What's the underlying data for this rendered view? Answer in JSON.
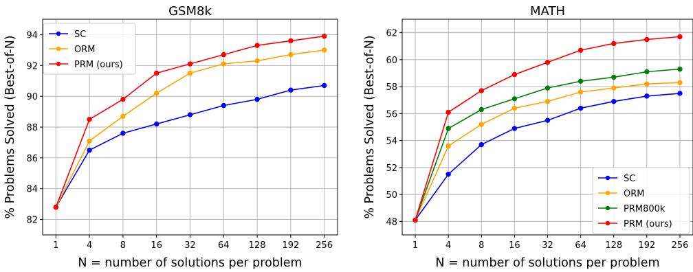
{
  "chart_data": [
    {
      "type": "line",
      "title": "GSM8k",
      "xlabel": "N = number of solutions per problem",
      "ylabel": "% Problems Solved (Best-of-N)",
      "categories": [
        "1",
        "4",
        "8",
        "16",
        "32",
        "64",
        "128",
        "192",
        "256"
      ],
      "ylim": [
        81,
        95
      ],
      "yticks": [
        82,
        84,
        86,
        88,
        90,
        92,
        94
      ],
      "grid": true,
      "legend_position": "top-left",
      "series": [
        {
          "name": "SC",
          "color": "#0000ff",
          "values": [
            82.8,
            86.5,
            87.6,
            88.2,
            88.8,
            89.4,
            89.8,
            90.4,
            90.7
          ]
        },
        {
          "name": "ORM",
          "color": "#ffa500",
          "values": [
            82.8,
            87.1,
            88.7,
            90.2,
            91.5,
            92.1,
            92.3,
            92.7,
            93.0
          ]
        },
        {
          "name": "PRM (ours)",
          "color": "#ff0000",
          "values": [
            82.8,
            88.5,
            89.8,
            91.5,
            92.1,
            92.7,
            93.3,
            93.6,
            93.9
          ]
        }
      ]
    },
    {
      "type": "line",
      "title": "MATH",
      "xlabel": "N = number of solutions per problem",
      "ylabel": "% Problems Solved (Best-of-N)",
      "categories": [
        "1",
        "4",
        "8",
        "16",
        "32",
        "64",
        "128",
        "192",
        "256"
      ],
      "ylim": [
        47,
        63
      ],
      "yticks": [
        48,
        50,
        52,
        54,
        56,
        58,
        60,
        62
      ],
      "grid": true,
      "legend_position": "bottom-right",
      "series": [
        {
          "name": "SC",
          "color": "#0000ff",
          "values": [
            48.1,
            51.5,
            53.7,
            54.9,
            55.5,
            56.4,
            56.9,
            57.3,
            57.5
          ]
        },
        {
          "name": "ORM",
          "color": "#ffa500",
          "values": [
            48.1,
            53.6,
            55.2,
            56.4,
            56.9,
            57.6,
            57.9,
            58.2,
            58.3
          ]
        },
        {
          "name": "PRM800k",
          "color": "#008000",
          "values": [
            48.1,
            54.9,
            56.3,
            57.1,
            57.9,
            58.4,
            58.7,
            59.1,
            59.3
          ]
        },
        {
          "name": "PRM (ours)",
          "color": "#ff0000",
          "values": [
            48.1,
            56.1,
            57.7,
            58.9,
            59.8,
            60.7,
            61.2,
            61.5,
            61.7
          ]
        }
      ]
    }
  ]
}
